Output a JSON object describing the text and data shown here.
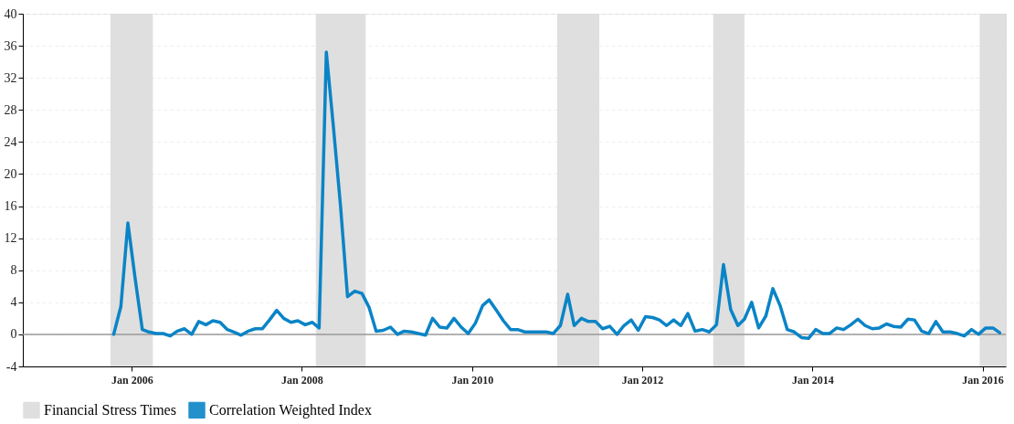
{
  "chart_data": {
    "type": "line",
    "x": [
      "2005-10-15",
      "2005-11-15",
      "2005-12-15",
      "2006-01-15",
      "2006-02-15",
      "2006-03-15",
      "2006-04-15",
      "2006-05-15",
      "2006-06-15",
      "2006-07-15",
      "2006-08-15",
      "2006-09-15",
      "2006-10-15",
      "2006-11-15",
      "2006-12-15",
      "2007-01-15",
      "2007-02-15",
      "2007-03-15",
      "2007-04-15",
      "2007-05-15",
      "2007-06-15",
      "2007-07-15",
      "2007-08-15",
      "2007-09-15",
      "2007-10-15",
      "2007-11-15",
      "2007-12-15",
      "2008-01-15",
      "2008-02-15",
      "2008-03-15",
      "2008-04-15",
      "2008-05-15",
      "2008-06-15",
      "2008-07-15",
      "2008-08-15",
      "2008-09-15",
      "2008-10-15",
      "2008-11-15",
      "2008-12-15",
      "2009-01-15",
      "2009-02-15",
      "2009-03-15",
      "2009-04-15",
      "2009-05-15",
      "2009-06-15",
      "2009-07-15",
      "2009-08-15",
      "2009-09-15",
      "2009-10-15",
      "2009-11-15",
      "2009-12-15",
      "2010-01-15",
      "2010-02-15",
      "2010-03-15",
      "2010-04-15",
      "2010-05-15",
      "2010-06-15",
      "2010-07-15",
      "2010-08-15",
      "2010-09-15",
      "2010-10-15",
      "2010-11-15",
      "2010-12-15",
      "2011-01-15",
      "2011-02-15",
      "2011-03-15",
      "2011-04-15",
      "2011-05-15",
      "2011-06-15",
      "2011-07-15",
      "2011-08-15",
      "2011-09-15",
      "2011-10-15",
      "2011-11-15",
      "2011-12-15",
      "2012-01-15",
      "2012-02-15",
      "2012-03-15",
      "2012-04-15",
      "2012-05-15",
      "2012-06-15",
      "2012-07-15",
      "2012-08-15",
      "2012-09-15",
      "2012-10-15",
      "2012-11-15",
      "2012-12-15",
      "2013-01-15",
      "2013-02-15",
      "2013-03-15",
      "2013-04-15",
      "2013-05-15",
      "2013-06-15",
      "2013-07-15",
      "2013-08-15",
      "2013-09-15",
      "2013-10-15",
      "2013-11-15",
      "2013-12-15",
      "2014-01-15",
      "2014-02-15",
      "2014-03-15",
      "2014-04-15",
      "2014-05-15",
      "2014-06-15",
      "2014-07-15",
      "2014-08-15",
      "2014-09-15",
      "2014-10-15",
      "2014-11-15",
      "2014-12-15",
      "2015-01-15",
      "2015-02-15",
      "2015-03-15",
      "2015-04-15",
      "2015-05-15",
      "2015-06-15",
      "2015-07-15",
      "2015-08-15",
      "2015-09-15",
      "2015-10-15",
      "2015-11-15",
      "2015-12-15",
      "2016-01-15",
      "2016-02-15",
      "2016-03-15"
    ],
    "series": [
      {
        "name": "Correlation Weighted Index",
        "color": "#0a84c6",
        "values": [
          0,
          3.5,
          13.9,
          7,
          0.6,
          0.3,
          0.1,
          0.1,
          -0.2,
          0.4,
          0.7,
          0,
          1.6,
          1.2,
          1.7,
          1.5,
          0.6,
          0.3,
          -0.1,
          0.4,
          0.7,
          0.7,
          1.8,
          3.0,
          2.0,
          1.5,
          1.7,
          1.2,
          1.5,
          0.8,
          35.2,
          26,
          16,
          4.7,
          5.4,
          5.1,
          3.4,
          0.4,
          0.5,
          0.9,
          0,
          0.4,
          0.3,
          0.1,
          -0.1,
          2.0,
          0.9,
          0.8,
          2.0,
          0.9,
          0.1,
          1.4,
          3.6,
          4.3,
          3.0,
          1.7,
          0.6,
          0.6,
          0.3,
          0.3,
          0.3,
          0.3,
          0.1,
          1.1,
          5.0,
          1.1,
          2.0,
          1.6,
          1.6,
          0.7,
          1.0,
          0,
          1.1,
          1.8,
          0.5,
          2.2,
          2.1,
          1.8,
          1.1,
          1.8,
          1.1,
          2.6,
          0.4,
          0.6,
          0.3,
          1.2,
          8.7,
          3.1,
          1.1,
          1.9,
          4.0,
          0.8,
          2.3,
          5.7,
          3.6,
          0.6,
          0.3,
          -0.4,
          -0.5,
          0.6,
          0.1,
          0.1,
          0.8,
          0.6,
          1.2,
          1.9,
          1.1,
          0.7,
          0.8,
          1.3,
          1.0,
          0.9,
          1.9,
          1.8,
          0.4,
          0.1,
          1.6,
          0.3,
          0.3,
          0.1,
          -0.2,
          0.6,
          0,
          0.8,
          0.8,
          0.2
        ]
      }
    ],
    "bands": [
      {
        "axis": "x",
        "from": "2005-10",
        "to": "2006-04",
        "label": "Financial Stress Times",
        "color": "#dcdcdc"
      },
      {
        "axis": "x",
        "from": "2008-03",
        "to": "2008-10",
        "color": "#dcdcdc"
      },
      {
        "axis": "x",
        "from": "2011-01",
        "to": "2011-07",
        "color": "#dcdcdc"
      },
      {
        "axis": "x",
        "from": "2012-11",
        "to": "2013-03-15",
        "color": "#dcdcdc"
      },
      {
        "axis": "x",
        "from": "2015-12-20",
        "to": "2016-04-10",
        "color": "#dcdcdc"
      }
    ],
    "ref_lines": [
      {
        "axis": "y",
        "value": 0,
        "color": "#9a9a9a"
      }
    ],
    "xlim": [
      "2004-09-20",
      "2016-04-10"
    ],
    "xticks": [
      {
        "value": "2006-01-01",
        "label": "Jan 2006"
      },
      {
        "value": "2008-01-01",
        "label": "Jan 2008"
      },
      {
        "value": "2010-01-01",
        "label": "Jan 2010"
      },
      {
        "value": "2012-01-01",
        "label": "Jan 2012"
      },
      {
        "value": "2014-01-01",
        "label": "Jan 2014"
      },
      {
        "value": "2016-01-01",
        "label": "Jan 2016"
      }
    ],
    "ylim": [
      -4,
      40
    ],
    "yticks": [
      -4,
      0,
      4,
      8,
      12,
      16,
      20,
      24,
      28,
      32,
      36,
      40
    ],
    "grid": "y",
    "legend": "bottom",
    "marker": "none",
    "line_style": "solid"
  }
}
